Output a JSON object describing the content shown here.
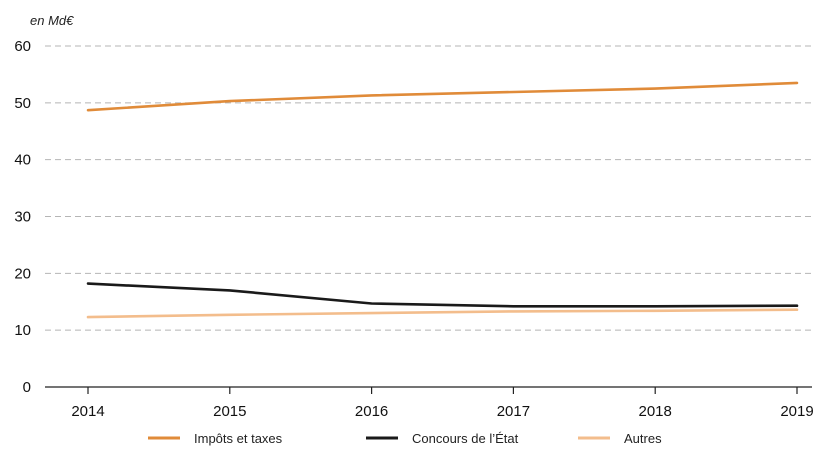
{
  "chart_data": {
    "type": "line",
    "unit_label": "en Md€",
    "x": [
      "2014",
      "2015",
      "2016",
      "2017",
      "2018",
      "2019"
    ],
    "ylim": [
      0,
      60
    ],
    "yticks": [
      "0",
      "10",
      "20",
      "30",
      "40",
      "50",
      "60"
    ],
    "grid": true,
    "legend_position": "bottom",
    "series": [
      {
        "name": "Impôts et taxes",
        "color": "#e08b39",
        "values": [
          48.7,
          50.3,
          51.3,
          51.9,
          52.5,
          53.5
        ]
      },
      {
        "name": "Concours de l’État",
        "color": "#1a1a1a",
        "values": [
          18.2,
          17.0,
          14.7,
          14.2,
          14.2,
          14.3
        ]
      },
      {
        "name": "Autres",
        "color": "#f3bd8c",
        "values": [
          12.3,
          12.7,
          13.0,
          13.3,
          13.4,
          13.6
        ]
      }
    ]
  }
}
